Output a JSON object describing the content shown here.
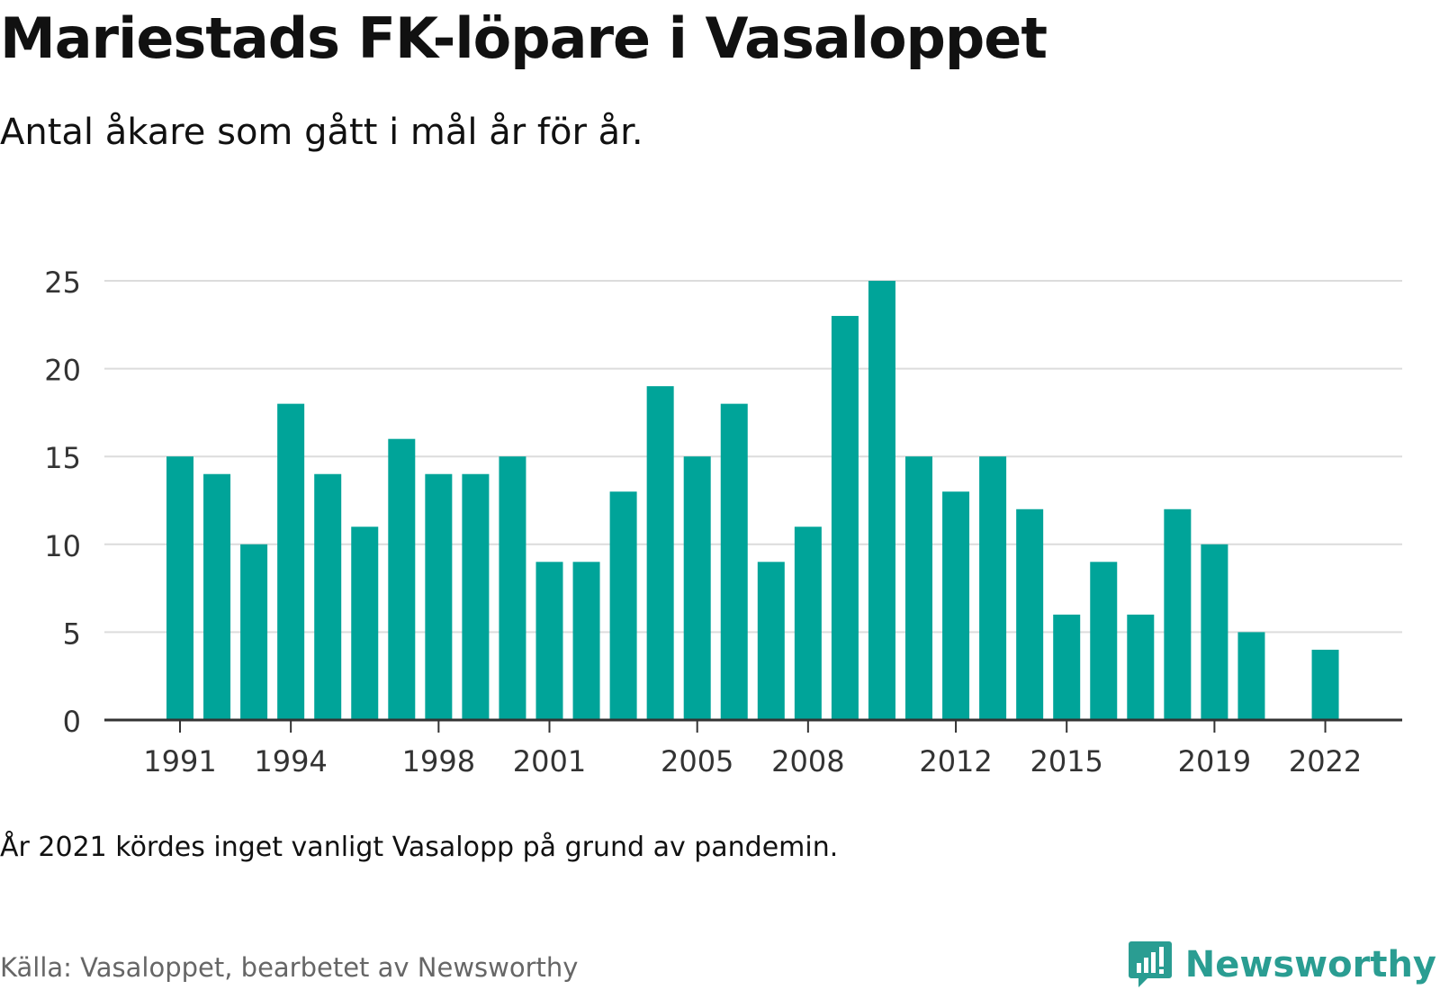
{
  "title": "Mariestads FK-löpare i Vasaloppet",
  "subtitle": "Antal åkare som gått i mål år för år.",
  "note": "År 2021 kördes inget vanligt Vasalopp på grund av pandemin.",
  "source": "Källa: Vasaloppet, bearbetet av Newsworthy",
  "logo_text": "Newsworthy",
  "colors": {
    "bar": "#00a499",
    "grid": "#dcdcdc",
    "axis": "#333333",
    "logo": "#2a9d92"
  },
  "chart_data": {
    "type": "bar",
    "categories": [
      "1991",
      "1992",
      "1993",
      "1994",
      "1995",
      "1996",
      "1997",
      "1998",
      "1999",
      "2000",
      "2001",
      "2002",
      "2003",
      "2004",
      "2005",
      "2006",
      "2007",
      "2008",
      "2009",
      "2010",
      "2011",
      "2012",
      "2013",
      "2014",
      "2015",
      "2016",
      "2017",
      "2018",
      "2019",
      "2020",
      "2021",
      "2022"
    ],
    "values": [
      15,
      14,
      10,
      18,
      14,
      11,
      16,
      14,
      14,
      15,
      9,
      9,
      13,
      19,
      15,
      18,
      9,
      11,
      23,
      25,
      15,
      13,
      15,
      12,
      6,
      9,
      6,
      12,
      10,
      5,
      null,
      4
    ],
    "xticks": [
      "1991",
      "1994",
      "1998",
      "2001",
      "2005",
      "2008",
      "2012",
      "2015",
      "2019",
      "2022"
    ],
    "yticks": [
      0,
      5,
      10,
      15,
      20,
      25
    ],
    "ylim": [
      0,
      25
    ],
    "grid": true
  }
}
